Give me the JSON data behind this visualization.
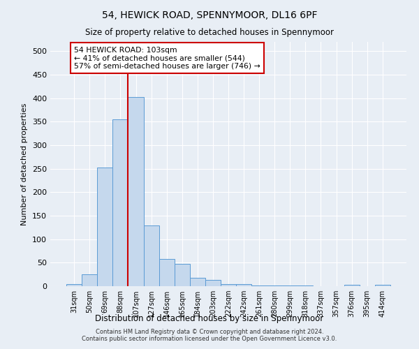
{
  "title": "54, HEWICK ROAD, SPENNYMOOR, DL16 6PF",
  "subtitle": "Size of property relative to detached houses in Spennymoor",
  "xlabel": "Distribution of detached houses by size in Spennymoor",
  "ylabel": "Number of detached properties",
  "categories": [
    "31sqm",
    "50sqm",
    "69sqm",
    "88sqm",
    "107sqm",
    "127sqm",
    "146sqm",
    "165sqm",
    "184sqm",
    "203sqm",
    "222sqm",
    "242sqm",
    "261sqm",
    "280sqm",
    "299sqm",
    "318sqm",
    "337sqm",
    "357sqm",
    "376sqm",
    "395sqm",
    "414sqm"
  ],
  "values": [
    5,
    25,
    252,
    355,
    403,
    130,
    58,
    48,
    18,
    14,
    5,
    4,
    1,
    1,
    1,
    1,
    0,
    0,
    3,
    0,
    3
  ],
  "bar_color": "#c5d8ed",
  "bar_edge_color": "#5b9bd5",
  "vline_color": "#cc0000",
  "vline_pos": 3.5,
  "annotation_text": "54 HEWICK ROAD: 103sqm\n← 41% of detached houses are smaller (544)\n57% of semi-detached houses are larger (746) →",
  "annotation_box_color": "#ffffff",
  "annotation_box_edge": "#cc0000",
  "bg_color": "#e8eef5",
  "plot_bg_color": "#e8eef5",
  "footer": "Contains HM Land Registry data © Crown copyright and database right 2024.\nContains public sector information licensed under the Open Government Licence v3.0.",
  "ylim": [
    0,
    520
  ],
  "yticks": [
    0,
    50,
    100,
    150,
    200,
    250,
    300,
    350,
    400,
    450,
    500
  ]
}
